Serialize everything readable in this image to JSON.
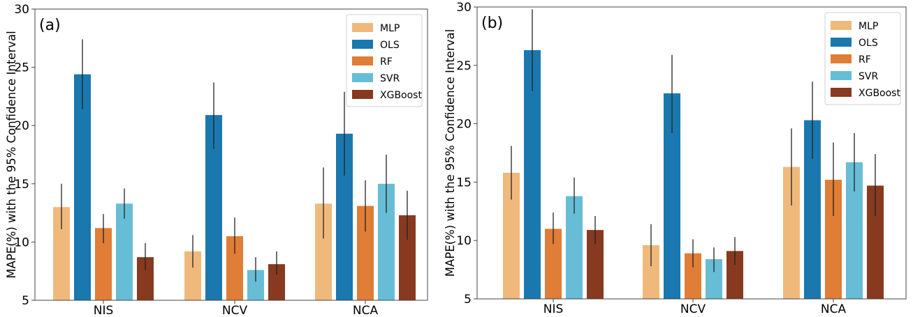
{
  "chart_data": [
    {
      "type": "bar",
      "panel_label": "(a)",
      "ylabel": "MAPE(%) with the 95% Confidence Interval",
      "ylim": [
        5,
        30
      ],
      "yticks": [
        5,
        10,
        15,
        20,
        25,
        30
      ],
      "categories": [
        "NIS",
        "NCV",
        "NCA"
      ],
      "legend_position": "top-right",
      "series": [
        {
          "name": "MLP",
          "color": "#F0B97C",
          "values": [
            13.0,
            9.2,
            13.3
          ],
          "ci_low": [
            11.1,
            7.8,
            10.3
          ],
          "ci_high": [
            15.0,
            10.6,
            16.4
          ]
        },
        {
          "name": "OLS",
          "color": "#1A78AE",
          "values": [
            24.4,
            20.9,
            19.3
          ],
          "ci_low": [
            21.4,
            18.0,
            15.7
          ],
          "ci_high": [
            27.4,
            23.7,
            22.9
          ]
        },
        {
          "name": "RF",
          "color": "#E07D36",
          "values": [
            11.2,
            10.5,
            13.1
          ],
          "ci_low": [
            9.9,
            9.0,
            10.9
          ],
          "ci_high": [
            12.4,
            12.1,
            15.3
          ]
        },
        {
          "name": "SVR",
          "color": "#68BDD6",
          "values": [
            13.3,
            7.6,
            15.0
          ],
          "ci_low": [
            12.0,
            6.6,
            12.5
          ],
          "ci_high": [
            14.6,
            8.7,
            17.5
          ]
        },
        {
          "name": "XGBoost",
          "color": "#873A1F",
          "values": [
            8.7,
            8.1,
            12.3
          ],
          "ci_low": [
            7.6,
            7.2,
            10.2
          ],
          "ci_high": [
            9.9,
            9.2,
            14.4
          ]
        }
      ]
    },
    {
      "type": "bar",
      "panel_label": "(b)",
      "ylabel": "MAPE(%) with the 95% Confidence Interval",
      "ylim": [
        5,
        30
      ],
      "yticks": [
        5,
        10,
        15,
        20,
        25,
        30
      ],
      "categories": [
        "NIS",
        "NCV",
        "NCA"
      ],
      "legend_position": "top-right",
      "series": [
        {
          "name": "MLP",
          "color": "#F0B97C",
          "values": [
            15.8,
            9.6,
            16.3
          ],
          "ci_low": [
            13.5,
            7.8,
            13.0
          ],
          "ci_high": [
            18.1,
            11.4,
            19.6
          ]
        },
        {
          "name": "OLS",
          "color": "#1A78AE",
          "values": [
            26.3,
            22.6,
            20.3
          ],
          "ci_low": [
            22.8,
            19.2,
            17.0
          ],
          "ci_high": [
            29.8,
            25.9,
            23.6
          ]
        },
        {
          "name": "RF",
          "color": "#E07D36",
          "values": [
            11.0,
            8.9,
            15.2
          ],
          "ci_low": [
            9.7,
            7.7,
            12.1
          ],
          "ci_high": [
            12.4,
            10.1,
            18.4
          ]
        },
        {
          "name": "SVR",
          "color": "#68BDD6",
          "values": [
            13.8,
            8.4,
            16.7
          ],
          "ci_low": [
            12.3,
            7.3,
            14.2
          ],
          "ci_high": [
            15.4,
            9.4,
            19.2
          ]
        },
        {
          "name": "XGBoost",
          "color": "#873A1F",
          "values": [
            10.9,
            9.1,
            14.7
          ],
          "ci_low": [
            9.7,
            7.9,
            12.1
          ],
          "ci_high": [
            12.1,
            10.3,
            17.4
          ]
        }
      ]
    }
  ]
}
